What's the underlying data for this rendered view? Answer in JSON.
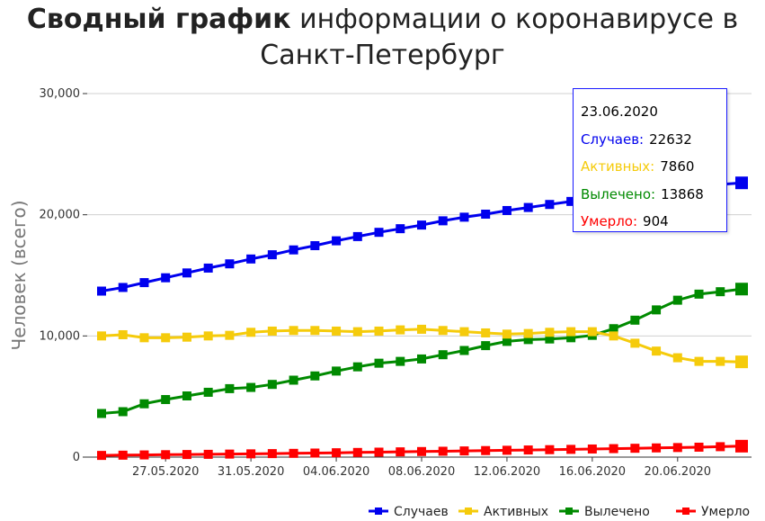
{
  "title": {
    "bold": "Сводный график",
    "rest": " информации о коронавирусе в",
    "line2": "Санкт-Петербург"
  },
  "colors": {
    "cases": "#0000ee",
    "active": "#f5cb0b",
    "recovered": "#008a00",
    "deaths": "#ff0000"
  },
  "tooltip": {
    "date": "23.06.2020",
    "rows": [
      {
        "label": "Случаев:",
        "value": "22632",
        "color": "#0000ee"
      },
      {
        "label": "Активных:",
        "value": "7860",
        "color": "#f5cb0b"
      },
      {
        "label": "Вылечено:",
        "value": "13868",
        "color": "#008a00"
      },
      {
        "label": "Умерло:",
        "value": "904",
        "color": "#ff0000"
      }
    ]
  },
  "chart_data": {
    "type": "line",
    "ylabel": "Человек (всего)",
    "ylim": [
      0,
      30000
    ],
    "yticks": [
      0,
      10000,
      20000,
      30000
    ],
    "ytick_labels": [
      "0",
      "10,000",
      "20,000",
      "30,000"
    ],
    "x": [
      "24.05.2020",
      "25.05.2020",
      "26.05.2020",
      "27.05.2020",
      "28.05.2020",
      "29.05.2020",
      "30.05.2020",
      "31.05.2020",
      "01.06.2020",
      "02.06.2020",
      "03.06.2020",
      "04.06.2020",
      "05.06.2020",
      "06.06.2020",
      "07.06.2020",
      "08.06.2020",
      "09.06.2020",
      "10.06.2020",
      "11.06.2020",
      "12.06.2020",
      "13.06.2020",
      "14.06.2020",
      "15.06.2020",
      "16.06.2020",
      "17.06.2020",
      "18.06.2020",
      "19.06.2020",
      "20.06.2020",
      "21.06.2020",
      "22.06.2020",
      "23.06.2020"
    ],
    "xtick_labels": [
      "27.05.2020",
      "31.05.2020",
      "04.06.2020",
      "08.06.2020",
      "12.06.2020",
      "16.06.2020",
      "20.06.2020"
    ],
    "legend_position": "bottom-right",
    "series": [
      {
        "name": "Случаев",
        "key": "cases",
        "values": [
          13700,
          14000,
          14400,
          14800,
          15200,
          15600,
          15950,
          16350,
          16700,
          17100,
          17450,
          17850,
          18200,
          18550,
          18850,
          19150,
          19500,
          19800,
          20050,
          20350,
          20600,
          20850,
          21100,
          21350,
          21600,
          21850,
          22050,
          22200,
          22350,
          22500,
          22632
        ]
      },
      {
        "name": "Активных",
        "key": "active",
        "values": [
          10000,
          10100,
          9850,
          9850,
          9900,
          10000,
          10050,
          10300,
          10400,
          10450,
          10450,
          10400,
          10350,
          10400,
          10500,
          10550,
          10450,
          10350,
          10250,
          10150,
          10200,
          10300,
          10350,
          10350,
          10000,
          9400,
          8750,
          8200,
          7900,
          7900,
          7860
        ]
      },
      {
        "name": "Вылечено",
        "key": "recovered",
        "values": [
          3600,
          3750,
          4400,
          4750,
          5050,
          5350,
          5650,
          5750,
          6000,
          6350,
          6700,
          7100,
          7450,
          7750,
          7900,
          8100,
          8450,
          8800,
          9200,
          9550,
          9700,
          9750,
          9850,
          10050,
          10600,
          11300,
          12150,
          12950,
          13450,
          13650,
          13868
        ]
      },
      {
        "name": "Умерло",
        "key": "deaths",
        "values": [
          140,
          160,
          180,
          200,
          215,
          230,
          250,
          270,
          290,
          310,
          335,
          360,
          385,
          410,
          435,
          460,
          485,
          510,
          540,
          565,
          590,
          615,
          640,
          670,
          700,
          730,
          760,
          790,
          820,
          860,
          904
        ]
      }
    ]
  }
}
